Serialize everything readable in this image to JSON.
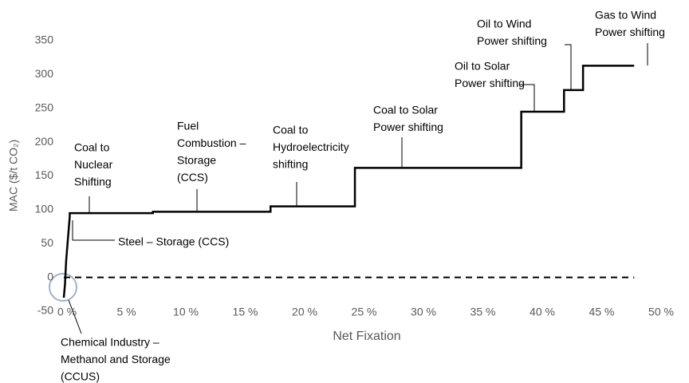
{
  "chart_data": {
    "type": "line",
    "y_label": "MAC ($/t CO₂)",
    "x_label": "Net Fixation",
    "xlim": [
      0,
      50
    ],
    "xticks": [
      {
        "value": 0,
        "label": "0 %"
      },
      {
        "value": 5,
        "label": "5 %"
      },
      {
        "value": 10,
        "label": "10 %"
      },
      {
        "value": 15,
        "label": "15 %"
      },
      {
        "value": 20,
        "label": "20 %"
      },
      {
        "value": 25,
        "label": "25 %"
      },
      {
        "value": 30,
        "label": "30 %"
      },
      {
        "value": 35,
        "label": "35 %"
      },
      {
        "value": 40,
        "label": "40 %"
      },
      {
        "value": 45,
        "label": "45 %"
      },
      {
        "value": 50,
        "label": "50 %"
      }
    ],
    "ylim": [
      -50,
      350
    ],
    "yticks": [
      -50,
      0,
      50,
      100,
      150,
      200,
      250,
      300,
      350
    ],
    "series": [
      {
        "color": "#000000",
        "x": [
          0,
          0.1,
          0.2,
          0.5,
          0.5,
          7.5,
          7.5,
          17.4,
          17.4,
          24.5,
          24.5,
          38.5,
          38.5,
          42.1,
          42.1,
          43.7,
          43.7,
          48
        ],
        "values": [
          -30,
          -10,
          25,
          90,
          95,
          95,
          97,
          97,
          105,
          105,
          162,
          162,
          245,
          245,
          277,
          277,
          313,
          313
        ]
      }
    ],
    "reference_line": {
      "y": 0,
      "x": [
        0,
        48
      ],
      "color": "#000000",
      "style": "dashed"
    },
    "annotations": [
      {
        "lines": [
          "Coal to",
          "Nuclear",
          "Shifting"
        ]
      },
      {
        "lines": [
          "Fuel",
          "Combustion –",
          "Storage",
          "(CCS)"
        ]
      },
      {
        "lines": [
          "Coal to",
          "Hydroelectricity",
          "shifting"
        ]
      },
      {
        "lines": [
          "Coal to Solar",
          "Power shifting"
        ]
      },
      {
        "lines": [
          "Oil to Solar",
          "Power shifting"
        ]
      },
      {
        "lines": [
          "Oil to Wind",
          "Power shifting"
        ]
      },
      {
        "lines": [
          "Gas to Wind",
          "Power shifting"
        ]
      },
      {
        "lines": [
          "Steel – Storage (CCS)"
        ]
      },
      {
        "lines": [
          "Chemical Industry –",
          "Methanol and Storage",
          "(CCUS)"
        ]
      }
    ]
  }
}
